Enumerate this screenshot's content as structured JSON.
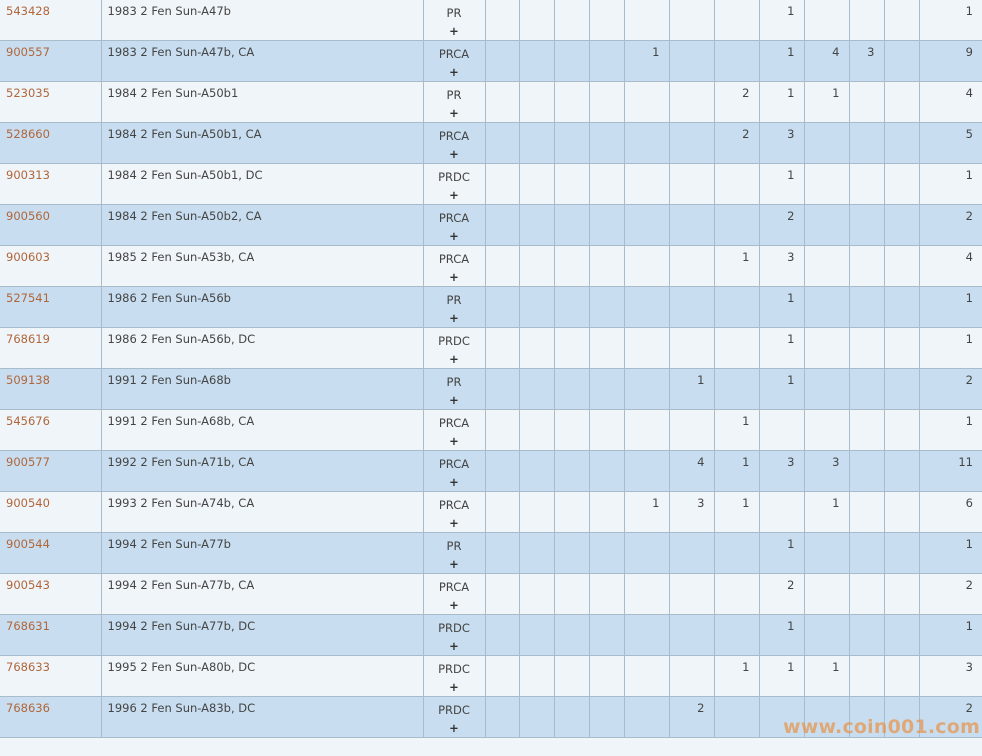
{
  "rows": [
    {
      "id": "543428",
      "name": "1983 2 Fen Sun-A47b",
      "grade": "PR",
      "expand": "+",
      "counts": [
        "",
        "",
        "",
        "",
        "",
        "",
        "",
        "1",
        "",
        "",
        ""
      ],
      "total": "1"
    },
    {
      "id": "900557",
      "name": "1983 2 Fen Sun-A47b, CA",
      "grade": "PRCA",
      "expand": "+",
      "counts": [
        "",
        "",
        "",
        "",
        "1",
        "",
        "",
        "1",
        "4",
        "3",
        ""
      ],
      "total": "9"
    },
    {
      "id": "523035",
      "name": "1984 2 Fen Sun-A50b1",
      "grade": "PR",
      "expand": "+",
      "counts": [
        "",
        "",
        "",
        "",
        "",
        "",
        "2",
        "1",
        "1",
        "",
        ""
      ],
      "total": "4"
    },
    {
      "id": "528660",
      "name": "1984 2 Fen Sun-A50b1, CA",
      "grade": "PRCA",
      "expand": "+",
      "counts": [
        "",
        "",
        "",
        "",
        "",
        "",
        "2",
        "3",
        "",
        "",
        ""
      ],
      "total": "5"
    },
    {
      "id": "900313",
      "name": "1984 2 Fen Sun-A50b1, DC",
      "grade": "PRDC",
      "expand": "+",
      "counts": [
        "",
        "",
        "",
        "",
        "",
        "",
        "",
        "1",
        "",
        "",
        ""
      ],
      "total": "1"
    },
    {
      "id": "900560",
      "name": "1984 2 Fen Sun-A50b2, CA",
      "grade": "PRCA",
      "expand": "+",
      "counts": [
        "",
        "",
        "",
        "",
        "",
        "",
        "",
        "2",
        "",
        "",
        ""
      ],
      "total": "2"
    },
    {
      "id": "900603",
      "name": "1985 2 Fen Sun-A53b, CA",
      "grade": "PRCA",
      "expand": "+",
      "counts": [
        "",
        "",
        "",
        "",
        "",
        "",
        "1",
        "3",
        "",
        "",
        ""
      ],
      "total": "4"
    },
    {
      "id": "527541",
      "name": "1986 2 Fen Sun-A56b",
      "grade": "PR",
      "expand": "+",
      "counts": [
        "",
        "",
        "",
        "",
        "",
        "",
        "",
        "1",
        "",
        "",
        ""
      ],
      "total": "1"
    },
    {
      "id": "768619",
      "name": "1986 2 Fen Sun-A56b, DC",
      "grade": "PRDC",
      "expand": "+",
      "counts": [
        "",
        "",
        "",
        "",
        "",
        "",
        "",
        "1",
        "",
        "",
        ""
      ],
      "total": "1"
    },
    {
      "id": "509138",
      "name": "1991 2 Fen Sun-A68b",
      "grade": "PR",
      "expand": "+",
      "counts": [
        "",
        "",
        "",
        "",
        "",
        "1",
        "",
        "1",
        "",
        "",
        ""
      ],
      "total": "2"
    },
    {
      "id": "545676",
      "name": "1991 2 Fen Sun-A68b, CA",
      "grade": "PRCA",
      "expand": "+",
      "counts": [
        "",
        "",
        "",
        "",
        "",
        "",
        "1",
        "",
        "",
        "",
        ""
      ],
      "total": "1"
    },
    {
      "id": "900577",
      "name": "1992 2 Fen Sun-A71b, CA",
      "grade": "PRCA",
      "expand": "+",
      "counts": [
        "",
        "",
        "",
        "",
        "",
        "4",
        "1",
        "3",
        "3",
        "",
        ""
      ],
      "total": "11"
    },
    {
      "id": "900540",
      "name": "1993 2 Fen Sun-A74b, CA",
      "grade": "PRCA",
      "expand": "+",
      "counts": [
        "",
        "",
        "",
        "",
        "1",
        "3",
        "1",
        "",
        "1",
        "",
        ""
      ],
      "total": "6"
    },
    {
      "id": "900544",
      "name": "1994 2 Fen Sun-A77b",
      "grade": "PR",
      "expand": "+",
      "counts": [
        "",
        "",
        "",
        "",
        "",
        "",
        "",
        "1",
        "",
        "",
        ""
      ],
      "total": "1"
    },
    {
      "id": "900543",
      "name": "1994 2 Fen Sun-A77b, CA",
      "grade": "PRCA",
      "expand": "+",
      "counts": [
        "",
        "",
        "",
        "",
        "",
        "",
        "",
        "2",
        "",
        "",
        ""
      ],
      "total": "2"
    },
    {
      "id": "768631",
      "name": "1994 2 Fen Sun-A77b, DC",
      "grade": "PRDC",
      "expand": "+",
      "counts": [
        "",
        "",
        "",
        "",
        "",
        "",
        "",
        "1",
        "",
        "",
        ""
      ],
      "total": "1"
    },
    {
      "id": "768633",
      "name": "1995 2 Fen Sun-A80b, DC",
      "grade": "PRDC",
      "expand": "+",
      "counts": [
        "",
        "",
        "",
        "",
        "",
        "",
        "1",
        "1",
        "1",
        "",
        ""
      ],
      "total": "3"
    },
    {
      "id": "768636",
      "name": "1996 2 Fen Sun-A83b, DC",
      "grade": "PRDC",
      "expand": "+",
      "counts": [
        "",
        "",
        "",
        "",
        "",
        "2",
        "",
        "",
        "",
        "",
        ""
      ],
      "total": "2"
    }
  ],
  "watermark": "www.coin001.com",
  "colors": {
    "link": "#b0663a",
    "row_light": "#f0f5fa",
    "row_blue": "#c8def0",
    "border": "#a9bccb",
    "watermark": "#e69650"
  }
}
